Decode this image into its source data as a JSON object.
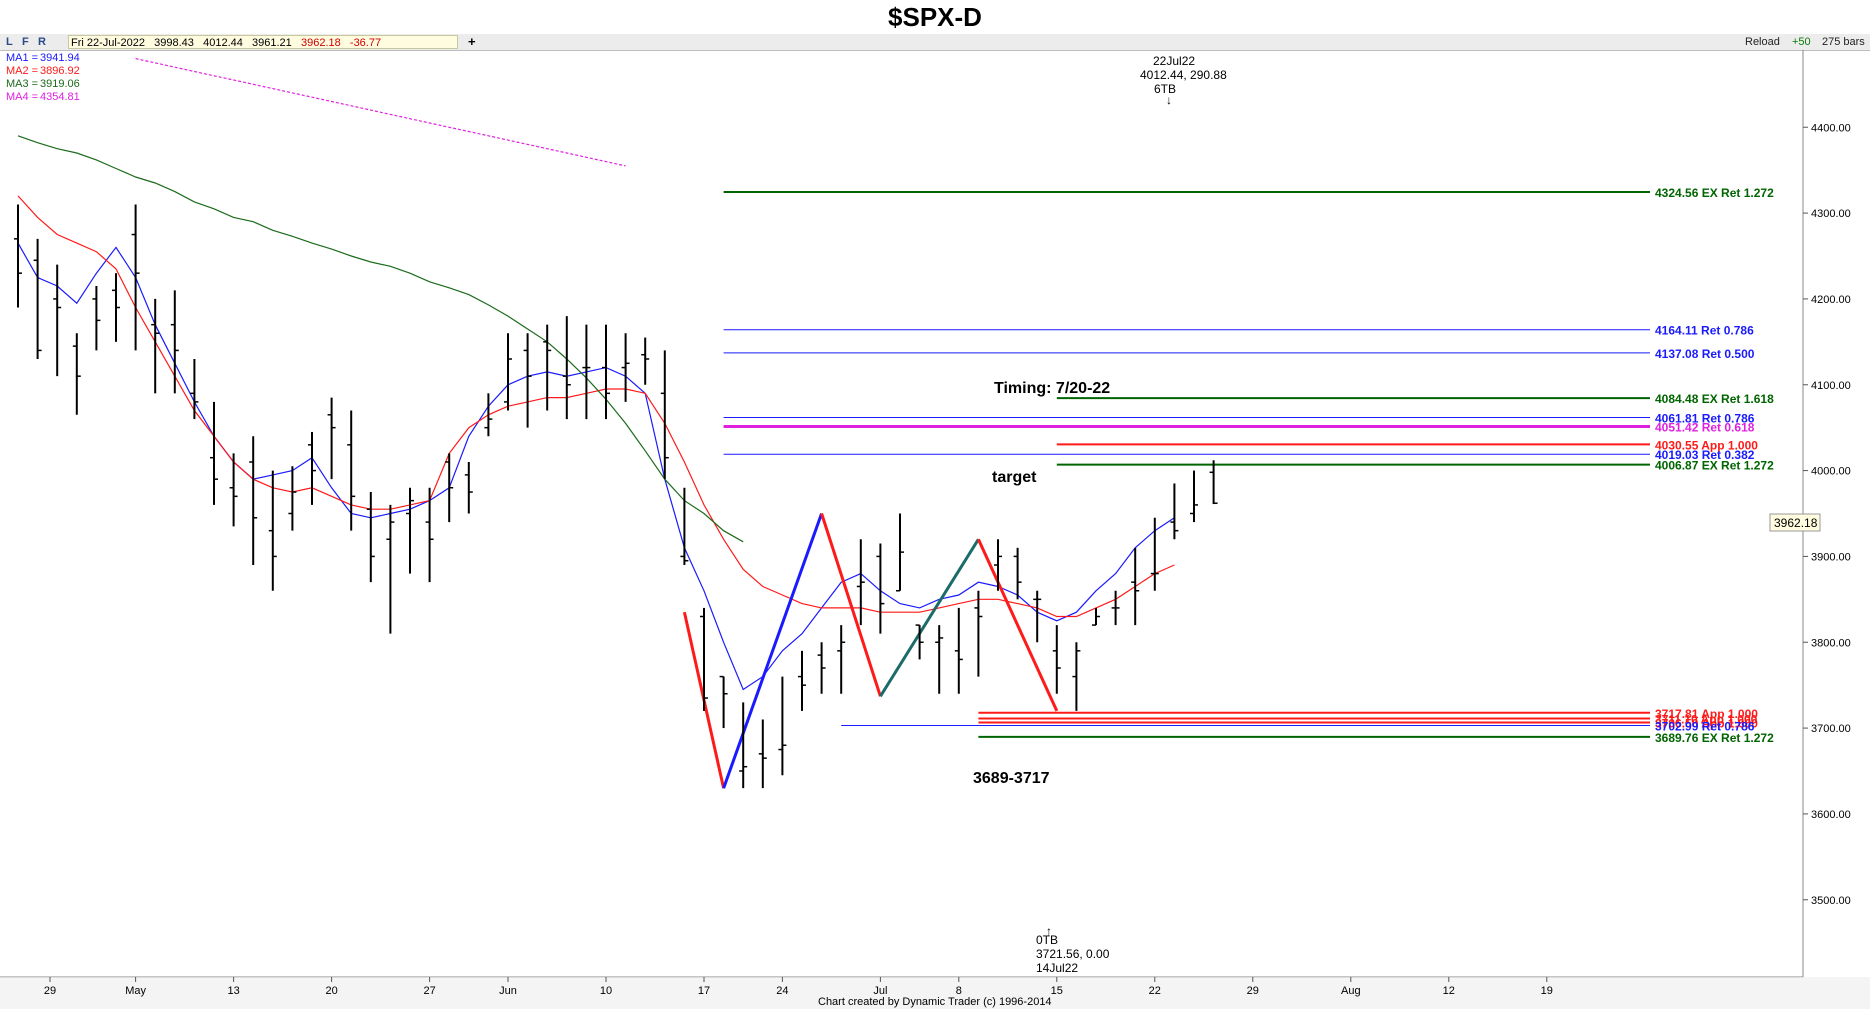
{
  "title": "$SPX-D",
  "toolbar": {
    "buttons": [
      "L",
      "F",
      "R"
    ],
    "quote": {
      "date": "Fri 22-Jul-2022",
      "open": "3998.43",
      "high": "4012.44",
      "low": "3961.21",
      "close": "3962.18",
      "change": "-36.77"
    },
    "add": "+",
    "reload": "Reload",
    "offset": "+50",
    "bars": "275 bars"
  },
  "legend": [
    {
      "label": "MA1 =",
      "value": "3941.94",
      "color": "#1a1aff"
    },
    {
      "label": "MA2 =",
      "value": "3896.92",
      "color": "#ff1a1a"
    },
    {
      "label": "MA3 =",
      "value": "3919.06",
      "color": "#1c6b1c"
    },
    {
      "label": "MA4 =",
      "value": "4354.81",
      "color": "#e020e0"
    }
  ],
  "annotations": {
    "top_pivot": [
      "22Jul22",
      "4012.44, 290.88",
      "6TB",
      "↓"
    ],
    "bottom_pivot": [
      "↑",
      "0TB",
      "3721.56, 0.00",
      "14Jul22"
    ],
    "timing": "Timing: 7/20-22",
    "target": "target",
    "zone": "3689-3717",
    "credit": "Chart created by Dynamic Trader  (c) 1996-2014"
  },
  "price_label": "3962.18",
  "chart_data": {
    "type": "ohlc",
    "symbol": "$SPX-D",
    "ylim": [
      3410,
      4490
    ],
    "y_ticks": [
      "3500.00",
      "3600.00",
      "3700.00",
      "3800.00",
      "3900.00",
      "4000.00",
      "4100.00",
      "4200.00",
      "4300.00",
      "4400.00"
    ],
    "x_ticks": [
      {
        "label": "29",
        "bar": 1
      },
      {
        "label": "May",
        "bar": 7
      },
      {
        "label": "13",
        "bar": 12
      },
      {
        "label": "20",
        "bar": 17
      },
      {
        "label": "27",
        "bar": 22
      },
      {
        "label": "Jun",
        "bar": 26
      },
      {
        "label": "10",
        "bar": 31
      },
      {
        "label": "17",
        "bar": 36
      },
      {
        "label": "24",
        "bar": 40
      },
      {
        "label": "Jul",
        "bar": 45
      },
      {
        "label": "8",
        "bar": 49
      },
      {
        "label": "15",
        "bar": 54
      },
      {
        "label": "22",
        "bar": 59
      },
      {
        "label": "29",
        "bar": 64
      },
      {
        "label": "Aug",
        "bar": 69
      },
      {
        "label": "12",
        "bar": 74
      },
      {
        "label": "19",
        "bar": 79
      }
    ],
    "bars": [
      [
        4270,
        4310,
        4190,
        4230
      ],
      [
        4245,
        4270,
        4130,
        4140
      ],
      [
        4200,
        4240,
        4110,
        4190
      ],
      [
        4145,
        4160,
        4065,
        4110
      ],
      [
        4200,
        4215,
        4140,
        4175
      ],
      [
        4210,
        4230,
        4150,
        4190
      ],
      [
        4275,
        4310,
        4140,
        4230
      ],
      [
        4170,
        4200,
        4090,
        4160
      ],
      [
        4170,
        4210,
        4090,
        4140
      ],
      [
        4090,
        4130,
        4060,
        4080
      ],
      [
        4015,
        4080,
        3960,
        3990
      ],
      [
        3980,
        4020,
        3935,
        3970
      ],
      [
        4010,
        4040,
        3890,
        3945
      ],
      [
        3930,
        4000,
        3860,
        3900
      ],
      [
        3950,
        4005,
        3930,
        3975
      ],
      [
        4030,
        4045,
        3960,
        4000
      ],
      [
        4065,
        4085,
        3990,
        4050
      ],
      [
        4030,
        4070,
        3930,
        3970
      ],
      [
        3955,
        3975,
        3870,
        3900
      ],
      [
        3920,
        3960,
        3810,
        3940
      ],
      [
        3950,
        3980,
        3880,
        3965
      ],
      [
        3940,
        3980,
        3870,
        3920
      ],
      [
        4010,
        4020,
        3940,
        3980
      ],
      [
        3995,
        4010,
        3950,
        3975
      ],
      [
        4050,
        4090,
        4040,
        4060
      ],
      [
        4080,
        4160,
        4070,
        4130
      ],
      [
        4140,
        4160,
        4050,
        4110
      ],
      [
        4150,
        4170,
        4070,
        4140
      ],
      [
        4110,
        4180,
        4060,
        4100
      ],
      [
        4120,
        4170,
        4060,
        4120
      ],
      [
        4120,
        4170,
        4060,
        4090
      ],
      [
        4120,
        4160,
        4080,
        4125
      ],
      [
        4135,
        4155,
        4100,
        4130
      ],
      [
        4090,
        4140,
        3990,
        4015
      ],
      [
        3900,
        3980,
        3890,
        3895
      ],
      [
        3830,
        3840,
        3720,
        3735
      ],
      [
        3760,
        3760,
        3700,
        3740
      ],
      [
        3650,
        3730,
        3630,
        3655
      ],
      [
        3670,
        3710,
        3630,
        3665
      ],
      [
        3675,
        3760,
        3645,
        3680
      ],
      [
        3760,
        3790,
        3720,
        3750
      ],
      [
        3785,
        3800,
        3740,
        3770
      ],
      [
        3790,
        3820,
        3740,
        3800
      ],
      [
        3865,
        3920,
        3820,
        3870
      ],
      [
        3900,
        3915,
        3810,
        3845
      ],
      [
        3860,
        3950,
        3860,
        3905
      ],
      [
        3820,
        3820,
        3780,
        3800
      ],
      [
        3800,
        3820,
        3740,
        3805
      ],
      [
        3790,
        3840,
        3740,
        3780
      ],
      [
        3840,
        3860,
        3760,
        3830
      ],
      [
        3890,
        3920,
        3860,
        3900
      ],
      [
        3900,
        3910,
        3850,
        3870
      ],
      [
        3850,
        3860,
        3800,
        3850
      ],
      [
        3790,
        3820,
        3740,
        3770
      ],
      [
        3760,
        3800,
        3720,
        3790
      ],
      [
        3820,
        3840,
        3820,
        3830
      ],
      [
        3840,
        3860,
        3820,
        3840
      ],
      [
        3870,
        3910,
        3820,
        3860
      ],
      [
        3880,
        3945,
        3860,
        3880
      ],
      [
        3940,
        3985,
        3920,
        3930
      ],
      [
        3950,
        4000,
        3940,
        3960
      ],
      [
        3998,
        4012,
        3961,
        3962
      ]
    ],
    "bar_start_index": 1,
    "moving_averages": [
      {
        "name": "MA1",
        "color": "#1a1aff",
        "bar_start": 1,
        "values": [
          4265,
          4225,
          4215,
          4195,
          4230,
          4260,
          4225,
          4170,
          4125,
          4080,
          4040,
          4010,
          3990,
          3995,
          4000,
          4015,
          3980,
          3950,
          3945,
          3950,
          3955,
          3965,
          3980,
          4040,
          4075,
          4100,
          4110,
          4115,
          4110,
          4115,
          4120,
          4110,
          4090,
          3990,
          3910,
          3860,
          3800,
          3745,
          3760,
          3790,
          3810,
          3840,
          3870,
          3880,
          3860,
          3845,
          3840,
          3850,
          3855,
          3870,
          3865,
          3855,
          3835,
          3825,
          3835,
          3860,
          3880,
          3910,
          3930,
          3945
        ]
      },
      {
        "name": "MA2",
        "color": "#ff1a1a",
        "bar_start": 1,
        "values": [
          4320,
          4295,
          4275,
          4265,
          4255,
          4235,
          4190,
          4150,
          4110,
          4070,
          4040,
          4010,
          3990,
          3980,
          3975,
          3980,
          3970,
          3960,
          3955,
          3955,
          3960,
          3965,
          4020,
          4050,
          4065,
          4075,
          4080,
          4085,
          4085,
          4090,
          4095,
          4095,
          4090,
          4055,
          4010,
          3960,
          3920,
          3885,
          3865,
          3855,
          3845,
          3840,
          3840,
          3840,
          3835,
          3835,
          3835,
          3840,
          3845,
          3850,
          3850,
          3845,
          3840,
          3830,
          3830,
          3840,
          3850,
          3865,
          3880,
          3890
        ]
      },
      {
        "name": "MA3",
        "color": "#1c6b1c",
        "bar_start": 1,
        "values": [
          4390,
          4382,
          4375,
          4370,
          4362,
          4352,
          4342,
          4335,
          4325,
          4313,
          4305,
          4295,
          4290,
          4280,
          4273,
          4265,
          4258,
          4250,
          4243,
          4238,
          4230,
          4220,
          4213,
          4205,
          4193,
          4180,
          4165,
          4150,
          4130,
          4108,
          4083,
          4055,
          4023,
          3990,
          3965,
          3950,
          3930,
          3917
        ]
      },
      {
        "name": "MA4",
        "color": "#e020e0",
        "bar_start": 7,
        "values": [
          4480,
          4475,
          4470,
          4465,
          4460,
          4455,
          4450,
          4445,
          4440,
          4435,
          4430,
          4425,
          4420,
          4415,
          4410,
          4405,
          4400,
          4395,
          4390,
          4385,
          4380,
          4375,
          4370,
          4365,
          4360,
          4355
        ]
      }
    ],
    "swing_lines": [
      {
        "color": "#ff1a1a",
        "points": [
          [
            35,
            3835
          ],
          [
            37,
            3630
          ]
        ]
      },
      {
        "color": "#1a1aff",
        "points": [
          [
            37,
            3630
          ],
          [
            42,
            3950
          ]
        ]
      },
      {
        "color": "#ff1a1a",
        "points": [
          [
            42,
            3950
          ],
          [
            45,
            3737
          ]
        ]
      },
      {
        "color": "#1c6b6b",
        "points": [
          [
            45,
            3737
          ],
          [
            50,
            3920
          ]
        ]
      },
      {
        "color": "#ff1a1a",
        "points": [
          [
            50,
            3920
          ],
          [
            54,
            3720
          ]
        ]
      }
    ],
    "levels": [
      {
        "price": 4324.56,
        "from": 37,
        "label": "4324.56 EX Ret 1.272",
        "color": "#006400",
        "width": 2
      },
      {
        "price": 4164.11,
        "from": 37,
        "label": "4164.11 Ret 0.786",
        "color": "#1a1aff",
        "width": 1
      },
      {
        "price": 4137.08,
        "from": 37,
        "label": "4137.08 Ret 0.500",
        "color": "#1a1aff",
        "width": 1
      },
      {
        "price": 4084.48,
        "from": 54,
        "label": "4084.48 EX Ret 1.618",
        "color": "#006400",
        "width": 2
      },
      {
        "price": 4061.81,
        "from": 37,
        "label": "4061.81 Ret 0.786",
        "color": "#1a1aff",
        "width": 1
      },
      {
        "price": 4051.42,
        "from": 37,
        "label": "4051.42 Ret 0.618",
        "color": "#e020e0",
        "width": 3
      },
      {
        "price": 4030.55,
        "from": 54,
        "label": "4030.55 App 1.000",
        "color": "#ff1a1a",
        "width": 2
      },
      {
        "price": 4019.03,
        "from": 37,
        "label": "4019.03 Ret 0.382",
        "color": "#1a1aff",
        "width": 1
      },
      {
        "price": 4006.87,
        "from": 54,
        "label": "4006.87 EX Ret 1.272",
        "color": "#006400",
        "width": 2
      },
      {
        "price": 3717.81,
        "from": 50,
        "label": "3717.81 App 1.000",
        "color": "#ff1a1a",
        "width": 2
      },
      {
        "price": 3711.1,
        "from": 50,
        "label": "3711.10 App 1.000",
        "color": "#ff1a1a",
        "width": 2
      },
      {
        "price": 3706.5,
        "from": 50,
        "label": "3706.50 App 1.000",
        "color": "#ff1a1a",
        "width": 2
      },
      {
        "price": 3702.99,
        "from": 43,
        "label": "3702.99 Ret 0.786",
        "color": "#1a1aff",
        "width": 1
      },
      {
        "price": 3689.76,
        "from": 50,
        "label": "3689.76 EX Ret 1.272",
        "color": "#006400",
        "width": 2
      }
    ]
  }
}
